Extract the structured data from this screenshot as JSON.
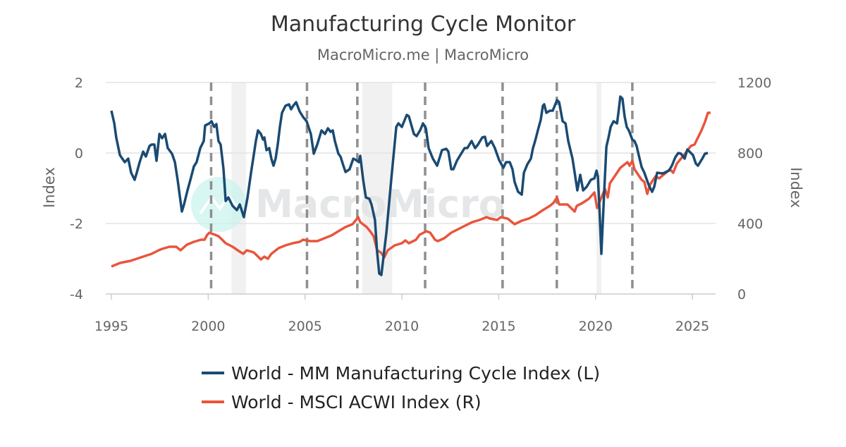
{
  "chart_data": {
    "type": "line",
    "title": "Manufacturing Cycle Monitor",
    "subtitle": "MacroMicro.me | MacroMicro",
    "watermark": "MacroMicro",
    "xlabel": "",
    "ylabel_left": "Index",
    "ylabel_right": "Index",
    "xlim": [
      1994.7,
      2026.3
    ],
    "ylim_left": [
      -4,
      2
    ],
    "ylim_right": [
      0,
      1200
    ],
    "x_ticks": [
      "1995",
      "2000",
      "2005",
      "2010",
      "2015",
      "2020",
      "2025"
    ],
    "y_ticks_left": [
      "2",
      "0",
      "-2",
      "-4"
    ],
    "y_ticks_right": [
      "1200",
      "800",
      "400",
      "0"
    ],
    "grid": true,
    "legend_position": "bottom",
    "colors": {
      "left_series": "#1a4a72",
      "right_series": "#e8553c",
      "shade": "#f1f1f1",
      "event_line": "#8f8f8f"
    },
    "event_lines": [
      2000.15,
      2005.1,
      2007.7,
      2011.2,
      2015.2,
      2018.0,
      2021.9
    ],
    "shaded_periods": [
      [
        2001.2,
        2001.95
      ],
      [
        2007.95,
        2009.5
      ],
      [
        2020.05,
        2020.3
      ]
    ],
    "series": [
      {
        "name": "World - MM Manufacturing Cycle Index (L)",
        "axis": "left",
        "x": [
          1995.0,
          1995.15,
          1995.25,
          1995.44,
          1995.69,
          1995.87,
          1996.02,
          1996.2,
          1996.31,
          1996.46,
          1996.64,
          1996.78,
          1996.97,
          1997.08,
          1997.22,
          1997.33,
          1997.48,
          1997.62,
          1997.77,
          1997.91,
          1998.13,
          1998.28,
          1998.42,
          1998.64,
          1998.75,
          1998.93,
          1999.08,
          1999.26,
          1999.4,
          1999.59,
          1999.77,
          1999.84,
          2000.06,
          2000.17,
          2000.31,
          2000.42,
          2000.53,
          2000.64,
          2000.79,
          2000.9,
          2001.04,
          2001.26,
          2001.48,
          2001.63,
          2001.84,
          2002.03,
          2002.21,
          2002.35,
          2002.46,
          2002.57,
          2002.72,
          2002.83,
          2002.9,
          2003.01,
          2003.15,
          2003.26,
          2003.37,
          2003.48,
          2003.59,
          2003.7,
          2003.81,
          2003.99,
          2004.17,
          2004.28,
          2004.39,
          2004.54,
          2004.72,
          2004.9,
          2005.08,
          2005.3,
          2005.45,
          2005.63,
          2005.85,
          2006.03,
          2006.18,
          2006.32,
          2006.43,
          2006.54,
          2006.72,
          2006.83,
          2006.98,
          2007.09,
          2007.3,
          2007.49,
          2007.63,
          2007.78,
          2007.85,
          2008.0,
          2008.14,
          2008.32,
          2008.43,
          2008.61,
          2008.72,
          2008.83,
          2008.94,
          2009.2,
          2009.45,
          2009.71,
          2009.82,
          2010.0,
          2010.25,
          2010.36,
          2010.62,
          2010.76,
          2010.94,
          2011.09,
          2011.24,
          2011.38,
          2011.6,
          2011.82,
          2012.07,
          2012.29,
          2012.4,
          2012.55,
          2012.66,
          2012.84,
          2013.06,
          2013.24,
          2013.38,
          2013.6,
          2013.78,
          2013.93,
          2014.15,
          2014.29,
          2014.4,
          2014.62,
          2014.8,
          2015.02,
          2015.24,
          2015.38,
          2015.57,
          2015.71,
          2015.82,
          2016.0,
          2016.19,
          2016.3,
          2016.48,
          2016.66,
          2016.77,
          2016.88,
          2017.02,
          2017.17,
          2017.28,
          2017.35,
          2017.46,
          2017.64,
          2017.79,
          2018.01,
          2018.12,
          2018.3,
          2018.45,
          2018.59,
          2018.81,
          2018.95,
          2019.06,
          2019.21,
          2019.36,
          2019.54,
          2019.76,
          2019.94,
          2020.05,
          2020.12,
          2020.2,
          2020.3,
          2020.45,
          2020.56,
          2020.67,
          2020.78,
          2020.93,
          2021.11,
          2021.18,
          2021.28,
          2021.39,
          2021.5,
          2021.61,
          2021.72,
          2021.9,
          2022.01,
          2022.12,
          2022.23,
          2022.38,
          2022.52,
          2022.74,
          2022.92,
          2023.03,
          2023.18,
          2023.47,
          2023.79,
          2023.94,
          2024.12,
          2024.27,
          2024.41,
          2024.6,
          2024.74,
          2024.85,
          2025.03,
          2025.18,
          2025.29,
          2025.51,
          2025.65,
          2025.8
        ],
        "values": [
          1.2,
          0.84,
          0.44,
          -0.06,
          -0.26,
          -0.16,
          -0.56,
          -0.76,
          -0.56,
          -0.26,
          0.04,
          -0.1,
          0.2,
          0.24,
          0.24,
          -0.22,
          0.54,
          0.42,
          0.54,
          0.14,
          -0.02,
          -0.26,
          -0.76,
          -1.66,
          -1.46,
          -1.06,
          -0.76,
          -0.38,
          -0.26,
          0.14,
          0.34,
          0.78,
          0.84,
          0.9,
          0.74,
          0.82,
          0.34,
          0.24,
          -0.46,
          -1.36,
          -1.26,
          -1.5,
          -1.62,
          -1.46,
          -1.82,
          -1.26,
          -0.56,
          -0.06,
          0.34,
          0.64,
          0.54,
          0.38,
          0.44,
          0.08,
          0.14,
          -0.16,
          -0.36,
          -0.16,
          0.24,
          0.74,
          1.14,
          1.34,
          1.38,
          1.24,
          1.34,
          1.44,
          1.18,
          1.02,
          0.9,
          0.54,
          -0.02,
          0.24,
          0.64,
          0.54,
          0.7,
          0.6,
          0.64,
          0.34,
          -0.02,
          -0.1,
          -0.36,
          -0.54,
          -0.46,
          -0.16,
          -0.2,
          -0.26,
          -0.08,
          -0.76,
          -1.26,
          -1.3,
          -1.46,
          -1.9,
          -2.8,
          -3.42,
          -3.46,
          -2.26,
          -0.76,
          0.74,
          0.84,
          0.74,
          1.08,
          1.04,
          0.54,
          0.48,
          0.64,
          0.84,
          0.7,
          0.14,
          -0.16,
          -0.36,
          0.08,
          0.12,
          0.04,
          -0.46,
          -0.46,
          -0.22,
          -0.02,
          0.14,
          0.14,
          0.34,
          0.14,
          0.24,
          0.44,
          0.46,
          0.2,
          0.34,
          0.14,
          -0.2,
          -0.42,
          -0.26,
          -0.26,
          -0.46,
          -0.82,
          -1.1,
          -1.18,
          -0.56,
          -0.32,
          -0.16,
          0.14,
          0.34,
          0.64,
          0.94,
          1.34,
          1.38,
          1.14,
          1.2,
          1.2,
          1.5,
          1.44,
          0.9,
          0.84,
          0.34,
          -0.16,
          -0.66,
          -1.06,
          -0.62,
          -1.06,
          -0.96,
          -0.76,
          -0.72,
          -0.5,
          -0.66,
          -1.56,
          -2.86,
          -1.06,
          0.18,
          0.44,
          0.74,
          0.9,
          0.84,
          1.14,
          1.6,
          1.54,
          1.04,
          0.74,
          0.64,
          0.38,
          0.34,
          0.2,
          -0.06,
          -0.4,
          -0.56,
          -0.9,
          -1.1,
          -0.96,
          -0.56,
          -0.58,
          -0.5,
          -0.36,
          -0.12,
          0.0,
          -0.02,
          -0.16,
          0.1,
          0.04,
          -0.06,
          -0.3,
          -0.36,
          -0.16,
          -0.02,
          0.0
        ]
      },
      {
        "name": "World - MSCI ACWI Index (R)",
        "axis": "right",
        "x": [
          1995.0,
          1995.44,
          1995.98,
          1996.53,
          1997.08,
          1997.44,
          1997.62,
          1997.99,
          1998.35,
          1998.57,
          1998.9,
          1999.26,
          1999.62,
          1999.81,
          1999.95,
          2000.06,
          2000.35,
          2000.53,
          2000.72,
          2000.9,
          2001.26,
          2001.63,
          2001.81,
          2001.99,
          2002.35,
          2002.54,
          2002.72,
          2002.9,
          2003.08,
          2003.26,
          2003.63,
          2003.99,
          2004.36,
          2004.72,
          2004.9,
          2005.27,
          2005.63,
          2005.99,
          2006.36,
          2006.72,
          2007.09,
          2007.45,
          2007.63,
          2007.74,
          2007.85,
          2008.18,
          2008.36,
          2008.54,
          2008.72,
          2008.91,
          2009.09,
          2009.27,
          2009.63,
          2010.0,
          2010.18,
          2010.36,
          2010.73,
          2010.91,
          2011.27,
          2011.46,
          2011.71,
          2011.85,
          2012.18,
          2012.55,
          2012.91,
          2013.27,
          2013.64,
          2014.01,
          2014.37,
          2014.55,
          2014.92,
          2015.1,
          2015.46,
          2015.82,
          2016.19,
          2016.55,
          2016.91,
          2017.28,
          2017.64,
          2017.82,
          2018.01,
          2018.12,
          2018.55,
          2018.92,
          2019.03,
          2019.32,
          2019.65,
          2019.94,
          2020.08,
          2020.38,
          2020.49,
          2020.63,
          2020.74,
          2021.11,
          2021.28,
          2021.65,
          2021.76,
          2021.9,
          2022.01,
          2022.38,
          2022.52,
          2022.67,
          2022.81,
          2023.1,
          2023.28,
          2023.64,
          2023.83,
          2024.01,
          2024.2,
          2024.56,
          2024.92,
          2025.11,
          2025.29,
          2025.47,
          2025.65,
          2025.8,
          2025.94
        ],
        "values": [
          156,
          176,
          188,
          208,
          228,
          248,
          256,
          268,
          268,
          248,
          280,
          296,
          308,
          308,
          336,
          348,
          336,
          328,
          308,
          288,
          268,
          240,
          228,
          248,
          236,
          216,
          196,
          212,
          200,
          228,
          260,
          276,
          288,
          296,
          308,
          300,
          300,
          316,
          332,
          356,
          380,
          396,
          420,
          436,
          408,
          380,
          356,
          328,
          248,
          236,
          208,
          248,
          276,
          288,
          304,
          288,
          308,
          336,
          356,
          348,
          308,
          300,
          316,
          348,
          368,
          388,
          408,
          420,
          436,
          428,
          420,
          436,
          428,
          396,
          416,
          428,
          448,
          476,
          500,
          516,
          548,
          508,
          508,
          468,
          500,
          516,
          540,
          576,
          488,
          568,
          596,
          548,
          628,
          688,
          716,
          748,
          728,
          756,
          708,
          648,
          636,
          568,
          620,
          668,
          656,
          688,
          708,
          688,
          740,
          788,
          840,
          848,
          888,
          928,
          976,
          1028,
          1028
        ]
      }
    ]
  }
}
